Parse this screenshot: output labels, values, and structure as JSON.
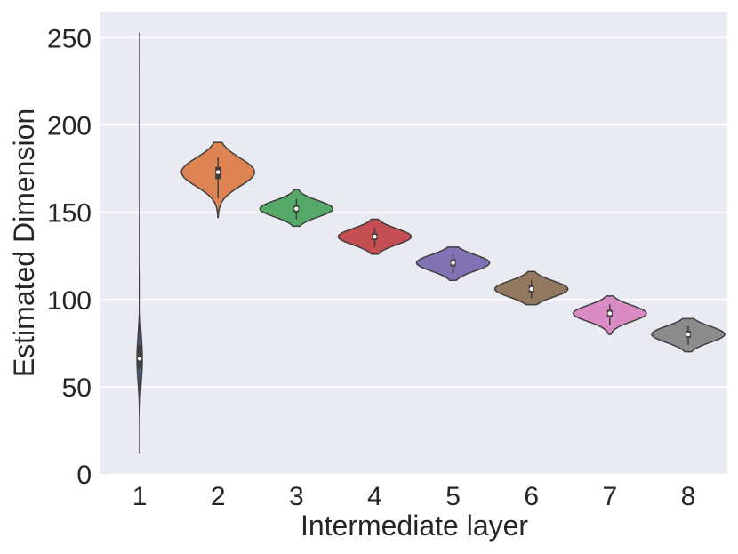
{
  "chart_data": {
    "type": "violin",
    "xlabel": "Intermediate layer",
    "ylabel": "Estimated Dimension",
    "ylim": [
      0,
      265
    ],
    "yticks": [
      0,
      50,
      100,
      150,
      200,
      250
    ],
    "grid": true,
    "categories": [
      "1",
      "2",
      "3",
      "4",
      "5",
      "6",
      "7",
      "8"
    ],
    "distributions": [
      {
        "category": "1",
        "color": "#4c72b0",
        "min": 12,
        "q1": 60,
        "median": 66,
        "q3": 74,
        "max": 253
      },
      {
        "category": "2",
        "color": "#dd8452",
        "min": 147,
        "q1": 169,
        "median": 173,
        "q3": 176,
        "max": 190
      },
      {
        "category": "3",
        "color": "#55a868",
        "min": 142,
        "q1": 150,
        "median": 152,
        "q3": 154,
        "max": 163
      },
      {
        "category": "4",
        "color": "#c44e52",
        "min": 126,
        "q1": 134,
        "median": 136,
        "q3": 138,
        "max": 146
      },
      {
        "category": "5",
        "color": "#8172b3",
        "min": 111,
        "q1": 119,
        "median": 121,
        "q3": 123,
        "max": 130
      },
      {
        "category": "6",
        "color": "#937860",
        "min": 97,
        "q1": 104,
        "median": 106,
        "q3": 108,
        "max": 116
      },
      {
        "category": "7",
        "color": "#da8bc3",
        "min": 80,
        "q1": 90,
        "median": 92,
        "q3": 94,
        "max": 102
      },
      {
        "category": "8",
        "color": "#8c8c8c",
        "min": 70,
        "q1": 78,
        "median": 80,
        "q3": 82,
        "max": 89
      }
    ]
  }
}
